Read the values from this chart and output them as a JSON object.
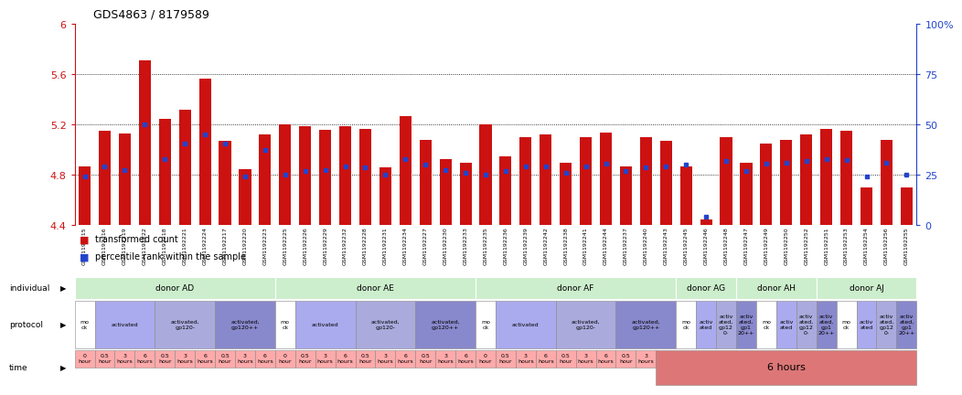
{
  "title": "GDS4863 / 8179589",
  "samples": [
    "GSM1192215",
    "GSM1192216",
    "GSM1192219",
    "GSM1192222",
    "GSM1192218",
    "GSM1192221",
    "GSM1192224",
    "GSM1192217",
    "GSM1192220",
    "GSM1192223",
    "GSM1192225",
    "GSM1192226",
    "GSM1192229",
    "GSM1192232",
    "GSM1192228",
    "GSM1192231",
    "GSM1192234",
    "GSM1192227",
    "GSM1192230",
    "GSM1192233",
    "GSM1192235",
    "GSM1192236",
    "GSM1192239",
    "GSM1192242",
    "GSM1192238",
    "GSM1192241",
    "GSM1192244",
    "GSM1192237",
    "GSM1192240",
    "GSM1192243",
    "GSM1192245",
    "GSM1192246",
    "GSM1192248",
    "GSM1192247",
    "GSM1192249",
    "GSM1192250",
    "GSM1192252",
    "GSM1192251",
    "GSM1192253",
    "GSM1192254",
    "GSM1192256",
    "GSM1192255"
  ],
  "bar_values": [
    4.87,
    5.15,
    5.13,
    5.71,
    5.25,
    5.32,
    5.57,
    5.07,
    4.85,
    5.12,
    5.2,
    5.19,
    5.16,
    5.19,
    5.17,
    4.86,
    5.27,
    5.08,
    4.93,
    4.9,
    5.2,
    4.95,
    5.1,
    5.12,
    4.9,
    5.1,
    5.14,
    4.87,
    5.1,
    5.07,
    4.87,
    4.45,
    5.1,
    4.9,
    5.05,
    5.08,
    5.12,
    5.17,
    5.15,
    4.7,
    5.08,
    4.7
  ],
  "percentile_values": [
    4.79,
    4.87,
    4.84,
    5.2,
    4.93,
    5.05,
    5.12,
    5.05,
    4.79,
    5.0,
    4.8,
    4.83,
    4.84,
    4.87,
    4.86,
    4.8,
    4.93,
    4.88,
    4.84,
    4.82,
    4.8,
    4.83,
    4.87,
    4.87,
    4.82,
    4.87,
    4.89,
    4.83,
    4.86,
    4.87,
    4.88,
    4.47,
    4.91,
    4.83,
    4.89,
    4.9,
    4.91,
    4.93,
    4.92,
    4.79,
    4.9,
    4.8
  ],
  "ymin": 4.4,
  "ymax": 6.0,
  "yticks": [
    4.4,
    4.8,
    5.2,
    5.6,
    6.0
  ],
  "ytick_labels": [
    "4.4",
    "4.8",
    "5.2",
    "5.6",
    "6"
  ],
  "right_yticks": [
    0,
    25,
    50,
    75,
    100
  ],
  "right_ytick_labels": [
    "0",
    "25",
    "50",
    "75",
    "100%"
  ],
  "gridlines": [
    4.8,
    5.2,
    5.6
  ],
  "bar_color": "#cc1111",
  "blue_color": "#2244cc",
  "individual_labels": [
    {
      "text": "donor AD",
      "start": 0,
      "end": 9
    },
    {
      "text": "donor AE",
      "start": 10,
      "end": 19
    },
    {
      "text": "donor AF",
      "start": 20,
      "end": 29
    },
    {
      "text": "donor AG",
      "start": 30,
      "end": 32
    },
    {
      "text": "donor AH",
      "start": 33,
      "end": 36
    },
    {
      "text": "donor AJ",
      "start": 37,
      "end": 41
    }
  ],
  "individual_color": "#cceecc",
  "individual_color_bright": "#88dd88",
  "protocol_groups": [
    {
      "text": "mo\nck",
      "start": 0,
      "end": 0,
      "color": "#ffffff"
    },
    {
      "text": "activated",
      "start": 1,
      "end": 3,
      "color": "#aaaaee"
    },
    {
      "text": "activated,\ngp120-",
      "start": 4,
      "end": 6,
      "color": "#aaaadd"
    },
    {
      "text": "activated,\ngp120++",
      "start": 7,
      "end": 9,
      "color": "#8888cc"
    },
    {
      "text": "mo\nck",
      "start": 10,
      "end": 10,
      "color": "#ffffff"
    },
    {
      "text": "activated",
      "start": 11,
      "end": 13,
      "color": "#aaaaee"
    },
    {
      "text": "activated,\ngp120-",
      "start": 14,
      "end": 16,
      "color": "#aaaadd"
    },
    {
      "text": "activated,\ngp120++",
      "start": 17,
      "end": 19,
      "color": "#8888cc"
    },
    {
      "text": "mo\nck",
      "start": 20,
      "end": 20,
      "color": "#ffffff"
    },
    {
      "text": "activated",
      "start": 21,
      "end": 23,
      "color": "#aaaaee"
    },
    {
      "text": "activated,\ngp120-",
      "start": 24,
      "end": 26,
      "color": "#aaaadd"
    },
    {
      "text": "activated,\ngp120++",
      "start": 27,
      "end": 29,
      "color": "#8888cc"
    },
    {
      "text": "mo\nck",
      "start": 30,
      "end": 30,
      "color": "#ffffff"
    },
    {
      "text": "activ\nated",
      "start": 31,
      "end": 31,
      "color": "#aaaaee"
    },
    {
      "text": "activ\nated,\ngp12\n0-",
      "start": 32,
      "end": 32,
      "color": "#aaaadd"
    },
    {
      "text": "activ\nated,\ngp1\n20++",
      "start": 33,
      "end": 33,
      "color": "#8888cc"
    },
    {
      "text": "mo\nck",
      "start": 34,
      "end": 34,
      "color": "#ffffff"
    },
    {
      "text": "activ\nated",
      "start": 35,
      "end": 35,
      "color": "#aaaaee"
    },
    {
      "text": "activ\nated,\ngp12\n0-",
      "start": 36,
      "end": 36,
      "color": "#aaaadd"
    },
    {
      "text": "activ\nated,\ngp1\n20++",
      "start": 37,
      "end": 37,
      "color": "#8888cc"
    },
    {
      "text": "mo\nck",
      "start": 38,
      "end": 38,
      "color": "#ffffff"
    },
    {
      "text": "activ\nated",
      "start": 39,
      "end": 39,
      "color": "#aaaaee"
    },
    {
      "text": "activ\nated,\ngp12\n0-",
      "start": 40,
      "end": 40,
      "color": "#aaaadd"
    },
    {
      "text": "activ\nated,\ngp1\n20++",
      "start": 41,
      "end": 41,
      "color": "#8888cc"
    }
  ],
  "time_labels": [
    {
      "text": "0\nhour",
      "start": 0,
      "end": 0
    },
    {
      "text": "0.5\nhour",
      "start": 1,
      "end": 1
    },
    {
      "text": "3\nhours",
      "start": 2,
      "end": 2
    },
    {
      "text": "6\nhours",
      "start": 3,
      "end": 3
    },
    {
      "text": "0.5\nhour",
      "start": 4,
      "end": 4
    },
    {
      "text": "3\nhours",
      "start": 5,
      "end": 5
    },
    {
      "text": "6\nhours",
      "start": 6,
      "end": 6
    },
    {
      "text": "0.5\nhour",
      "start": 7,
      "end": 7
    },
    {
      "text": "3\nhours",
      "start": 8,
      "end": 8
    },
    {
      "text": "6\nhours",
      "start": 9,
      "end": 9
    },
    {
      "text": "0\nhour",
      "start": 10,
      "end": 10
    },
    {
      "text": "0.5\nhour",
      "start": 11,
      "end": 11
    },
    {
      "text": "3\nhours",
      "start": 12,
      "end": 12
    },
    {
      "text": "6\nhours",
      "start": 13,
      "end": 13
    },
    {
      "text": "0.5\nhour",
      "start": 14,
      "end": 14
    },
    {
      "text": "3\nhours",
      "start": 15,
      "end": 15
    },
    {
      "text": "6\nhours",
      "start": 16,
      "end": 16
    },
    {
      "text": "0.5\nhour",
      "start": 17,
      "end": 17
    },
    {
      "text": "3\nhours",
      "start": 18,
      "end": 18
    },
    {
      "text": "6\nhours",
      "start": 19,
      "end": 19
    },
    {
      "text": "0\nhour",
      "start": 20,
      "end": 20
    },
    {
      "text": "0.5\nhour",
      "start": 21,
      "end": 21
    },
    {
      "text": "3\nhours",
      "start": 22,
      "end": 22
    },
    {
      "text": "6\nhours",
      "start": 23,
      "end": 23
    },
    {
      "text": "0.5\nhour",
      "start": 24,
      "end": 24
    },
    {
      "text": "3\nhours",
      "start": 25,
      "end": 25
    },
    {
      "text": "6\nhours",
      "start": 26,
      "end": 26
    },
    {
      "text": "0.5\nhour",
      "start": 27,
      "end": 27
    },
    {
      "text": "3\nhours",
      "start": 28,
      "end": 28
    },
    {
      "text": "6 hours",
      "start": 29,
      "end": 41
    }
  ],
  "time_color_normal": "#ffaaaa",
  "time_color_6h": "#dd7777",
  "legend_items": [
    {
      "color": "#cc1111",
      "label": "transformed count"
    },
    {
      "color": "#2244cc",
      "label": "percentile rank within the sample"
    }
  ]
}
